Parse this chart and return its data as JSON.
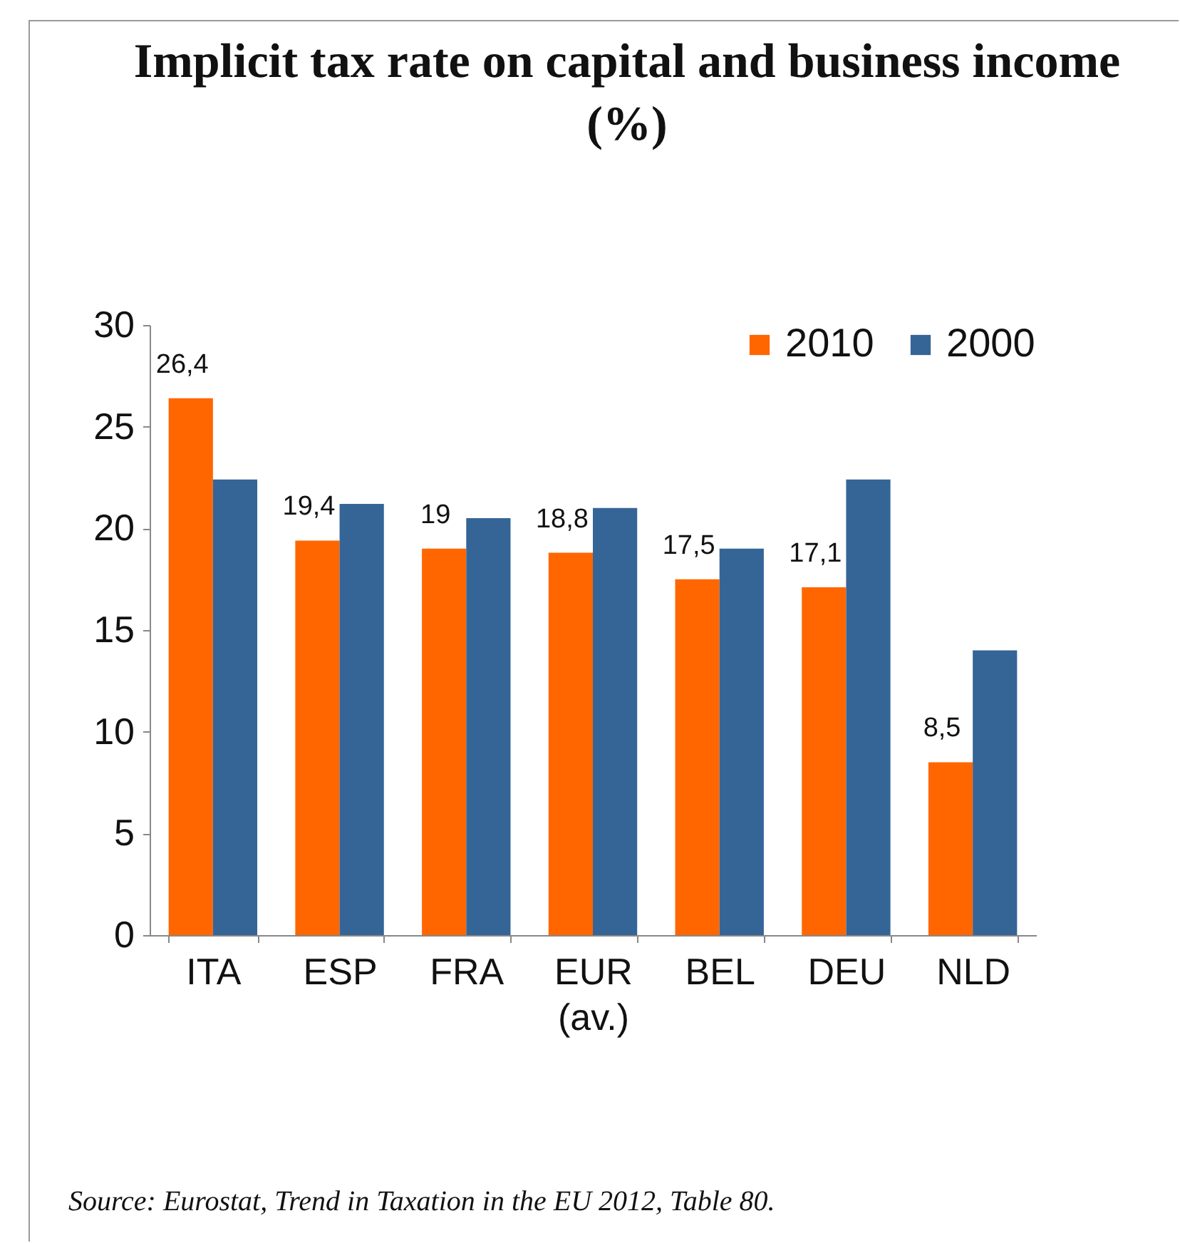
{
  "chart_data": {
    "type": "bar",
    "title": "Implicit tax rate on capital and business income (%)",
    "categories": [
      "ITA",
      "ESP",
      "FRA",
      "EUR (av.)",
      "BEL",
      "DEU",
      "NLD"
    ],
    "series": [
      {
        "name": "2010",
        "color": "#ff6600",
        "values": [
          26.4,
          19.4,
          19,
          18.8,
          17.5,
          17.1,
          8.5
        ],
        "value_labels": [
          "26,4",
          "19,4",
          "19",
          "18,8",
          "17,5",
          "17,1",
          "8,5"
        ]
      },
      {
        "name": "2000",
        "color": "#356597",
        "values": [
          22.4,
          21.2,
          20.5,
          21.0,
          19.0,
          22.4,
          14.0
        ]
      }
    ],
    "ylim": [
      0,
      30
    ],
    "yticks": [
      0,
      5,
      10,
      15,
      20,
      25,
      30
    ],
    "grid": false,
    "legend": "top right",
    "annotations": [
      "Source: Eurostat, Trend in Taxation in the EU 2012, Table 80."
    ]
  }
}
